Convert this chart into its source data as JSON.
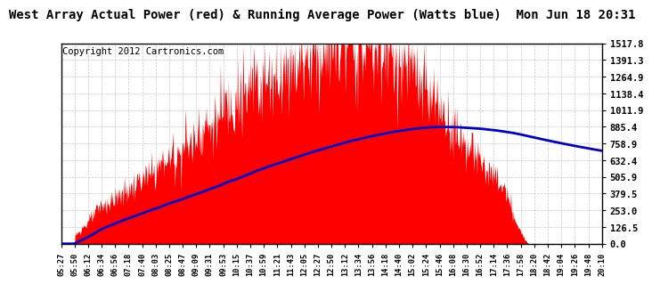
{
  "title": "West Array Actual Power (red) & Running Average Power (Watts blue)  Mon Jun 18 20:31",
  "copyright": "Copyright 2012 Cartronics.com",
  "ymin": 0.0,
  "ymax": 1517.8,
  "yticks": [
    0.0,
    126.5,
    253.0,
    379.5,
    505.9,
    632.4,
    758.9,
    885.4,
    1011.9,
    1138.4,
    1264.9,
    1391.3,
    1517.8
  ],
  "xlabel_times": [
    "05:27",
    "05:50",
    "06:12",
    "06:34",
    "06:56",
    "07:18",
    "07:40",
    "08:03",
    "08:25",
    "08:47",
    "09:09",
    "09:31",
    "09:53",
    "10:15",
    "10:37",
    "10:59",
    "11:21",
    "11:43",
    "12:05",
    "12:27",
    "12:50",
    "13:12",
    "13:34",
    "13:56",
    "14:18",
    "14:40",
    "15:02",
    "15:24",
    "15:46",
    "16:08",
    "16:30",
    "16:52",
    "17:14",
    "17:36",
    "17:58",
    "18:20",
    "18:42",
    "19:04",
    "19:26",
    "19:48",
    "20:10"
  ],
  "bg_color": "#ffffff",
  "grid_color": "#c8c8c8",
  "actual_color": "#ff0000",
  "avg_color": "#0000cc",
  "title_fontsize": 10,
  "copyright_fontsize": 7.5
}
